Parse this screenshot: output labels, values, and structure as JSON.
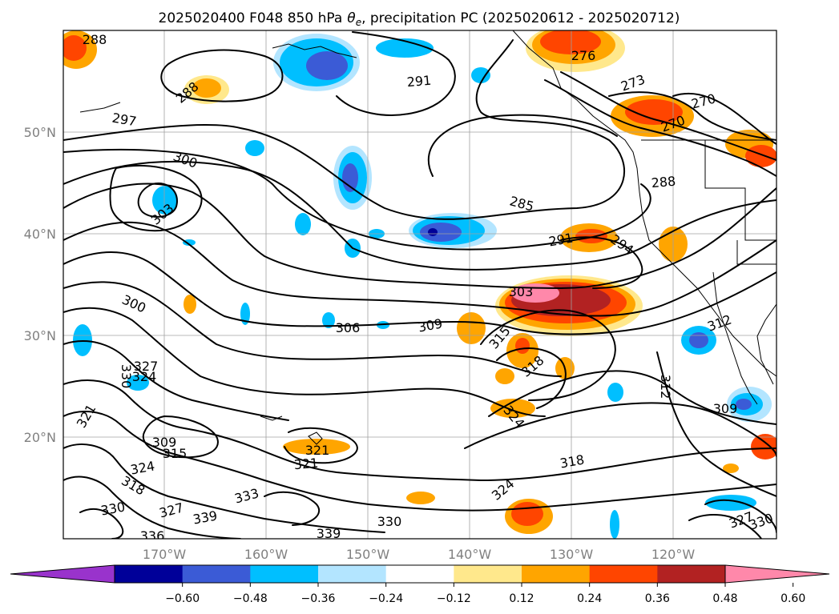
{
  "title_text": "2025020400 F048 850 hPa",
  "title_theta": "θ",
  "title_sub": "e",
  "title_rest": ", precipitation PC (2025020612 - 2025020712)",
  "lon_labels": [
    {
      "deg": -170,
      "text": "170°W"
    },
    {
      "deg": -160,
      "text": "160°W"
    },
    {
      "deg": -150,
      "text": "150°W"
    },
    {
      "deg": -140,
      "text": "140°W"
    },
    {
      "deg": -130,
      "text": "130°W"
    },
    {
      "deg": -120,
      "text": "120°W"
    }
  ],
  "lat_labels": [
    {
      "deg": 50,
      "text": "50°N"
    },
    {
      "deg": 40,
      "text": "40°N"
    },
    {
      "deg": 30,
      "text": "30°N"
    },
    {
      "deg": 20,
      "text": "20°N"
    }
  ],
  "colorbar": {
    "colors": [
      "#9933cc",
      "#000099",
      "#3b5bd6",
      "#00bfff",
      "#b3e5ff",
      "#ffffff",
      "#ffe88c",
      "#ffa500",
      "#ff4500",
      "#b22222",
      "#ff88aa"
    ],
    "tick_labels": [
      "−0.60",
      "−0.48",
      "−0.36",
      "−0.24",
      "−0.12",
      "0.12",
      "0.24",
      "0.36",
      "0.48",
      "0.60"
    ]
  },
  "contour_labels": [
    {
      "text": "288",
      "rot": 0,
      "id": "a"
    },
    {
      "text": "276",
      "rot": 0,
      "id": "b"
    },
    {
      "text": "291",
      "rot": -5,
      "id": "c"
    },
    {
      "text": "273",
      "rot": -20,
      "id": "d"
    },
    {
      "text": "270",
      "rot": -15,
      "id": "e"
    },
    {
      "text": "270",
      "rot": -20,
      "id": "f"
    },
    {
      "text": "297",
      "rot": 10,
      "id": "g"
    },
    {
      "text": "288",
      "rot": -40,
      "id": "h"
    },
    {
      "text": "300",
      "rot": 20,
      "id": "i"
    },
    {
      "text": "303",
      "rot": -40,
      "id": "j"
    },
    {
      "text": "285",
      "rot": 15,
      "id": "k"
    },
    {
      "text": "288",
      "rot": -5,
      "id": "l"
    },
    {
      "text": "291",
      "rot": -10,
      "id": "m"
    },
    {
      "text": "294",
      "rot": 35,
      "id": "n"
    },
    {
      "text": "300",
      "rot": 25,
      "id": "o"
    },
    {
      "text": "303",
      "rot": 0,
      "id": "p"
    },
    {
      "text": "306",
      "rot": 0,
      "id": "q"
    },
    {
      "text": "309",
      "rot": -10,
      "id": "r"
    },
    {
      "text": "315",
      "rot": -50,
      "id": "s"
    },
    {
      "text": "312",
      "rot": -20,
      "id": "t"
    },
    {
      "text": "318",
      "rot": -40,
      "id": "u"
    },
    {
      "text": "312",
      "rot": 90,
      "id": "v"
    },
    {
      "text": "324",
      "rot": 50,
      "id": "w"
    },
    {
      "text": "309",
      "rot": 0,
      "id": "x"
    },
    {
      "text": "327",
      "rot": 0,
      "id": "y"
    },
    {
      "text": "324",
      "rot": 0,
      "id": "z"
    },
    {
      "text": "330",
      "rot": 90,
      "id": "aa"
    },
    {
      "text": "321",
      "rot": -60,
      "id": "ab"
    },
    {
      "text": "309",
      "rot": 0,
      "id": "ac"
    },
    {
      "text": "315",
      "rot": 0,
      "id": "ad"
    },
    {
      "text": "324",
      "rot": -10,
      "id": "ae"
    },
    {
      "text": "318",
      "rot": 30,
      "id": "af"
    },
    {
      "text": "321",
      "rot": 0,
      "id": "ag"
    },
    {
      "text": "321",
      "rot": -5,
      "id": "ah"
    },
    {
      "text": "333",
      "rot": -15,
      "id": "ai"
    },
    {
      "text": "318",
      "rot": -10,
      "id": "aj"
    },
    {
      "text": "324",
      "rot": -40,
      "id": "ak"
    },
    {
      "text": "330",
      "rot": -10,
      "id": "al"
    },
    {
      "text": "327",
      "rot": -15,
      "id": "am"
    },
    {
      "text": "339",
      "rot": -10,
      "id": "an"
    },
    {
      "text": "330",
      "rot": 0,
      "id": "ao"
    },
    {
      "text": "339",
      "rot": 0,
      "id": "ap"
    },
    {
      "text": "336",
      "rot": 0,
      "id": "aq"
    },
    {
      "text": "327",
      "rot": -20,
      "id": "ar"
    },
    {
      "text": "330",
      "rot": -20,
      "id": "as"
    }
  ]
}
